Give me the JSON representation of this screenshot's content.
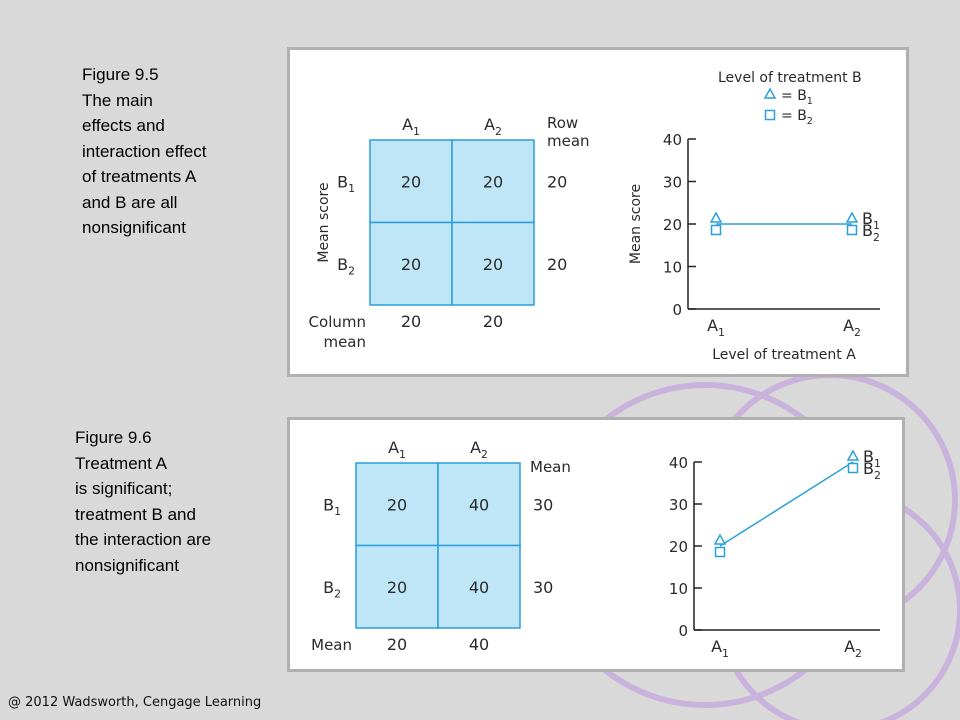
{
  "slide": {
    "captions": [
      [
        "Figure 9.5",
        "The main",
        "effects and",
        "interaction effect",
        "of treatments A",
        "and B are all",
        "nonsignificant"
      ],
      [
        "Figure 9.6",
        "Treatment A",
        "is significant;",
        "treatment B and",
        "the interaction are",
        "nonsignificant"
      ]
    ],
    "footer": "@ 2012 Wadsworth, Cengage Learning",
    "colors": {
      "background": "#d9d9d9",
      "cell_fill": "#bfe6f7",
      "line": "#2b9fd9",
      "decor": "#c9b3dd"
    }
  },
  "chart_data": [
    {
      "type": "table",
      "columns": [
        "A1",
        "A2",
        "Row mean"
      ],
      "rows": [
        {
          "label": "B1",
          "cells": [
            "20",
            "20"
          ],
          "mean": "20"
        },
        {
          "label": "B2",
          "cells": [
            "20",
            "20"
          ],
          "mean": "20"
        }
      ],
      "column_mean_label": [
        "Column",
        "mean"
      ],
      "row_mean_label": [
        "Row",
        "mean"
      ],
      "column_means": [
        "20",
        "20"
      ],
      "side_label": "Mean score"
    },
    {
      "type": "line",
      "x": [
        "A1",
        "A2"
      ],
      "series": [
        {
          "name": "B1",
          "values": [
            20,
            20
          ],
          "marker": "triangle"
        },
        {
          "name": "B2",
          "values": [
            20,
            20
          ],
          "marker": "square"
        }
      ],
      "ylabel": "Mean score",
      "xlabel": "Level of treatment A",
      "ylim": [
        0,
        40
      ],
      "yticks": [
        "0",
        "10",
        "20",
        "30",
        "40"
      ],
      "legend_title": "Level of treatment B",
      "legend": [
        "= B1",
        "= B2"
      ],
      "legend_position": "top-right"
    },
    {
      "type": "table",
      "columns": [
        "A1",
        "A2",
        "Mean"
      ],
      "rows": [
        {
          "label": "B1",
          "cells": [
            "20",
            "40"
          ],
          "mean": "30"
        },
        {
          "label": "B2",
          "cells": [
            "20",
            "40"
          ],
          "mean": "30"
        }
      ],
      "column_mean_label": [
        "Mean"
      ],
      "column_means": [
        "20",
        "40"
      ]
    },
    {
      "type": "line",
      "x": [
        "A1",
        "A2"
      ],
      "series": [
        {
          "name": "B1",
          "values": [
            20,
            40
          ],
          "marker": "triangle"
        },
        {
          "name": "B2",
          "values": [
            20,
            40
          ],
          "marker": "square"
        }
      ],
      "ylim": [
        0,
        40
      ],
      "yticks": [
        "0",
        "10",
        "20",
        "30",
        "40"
      ]
    }
  ]
}
